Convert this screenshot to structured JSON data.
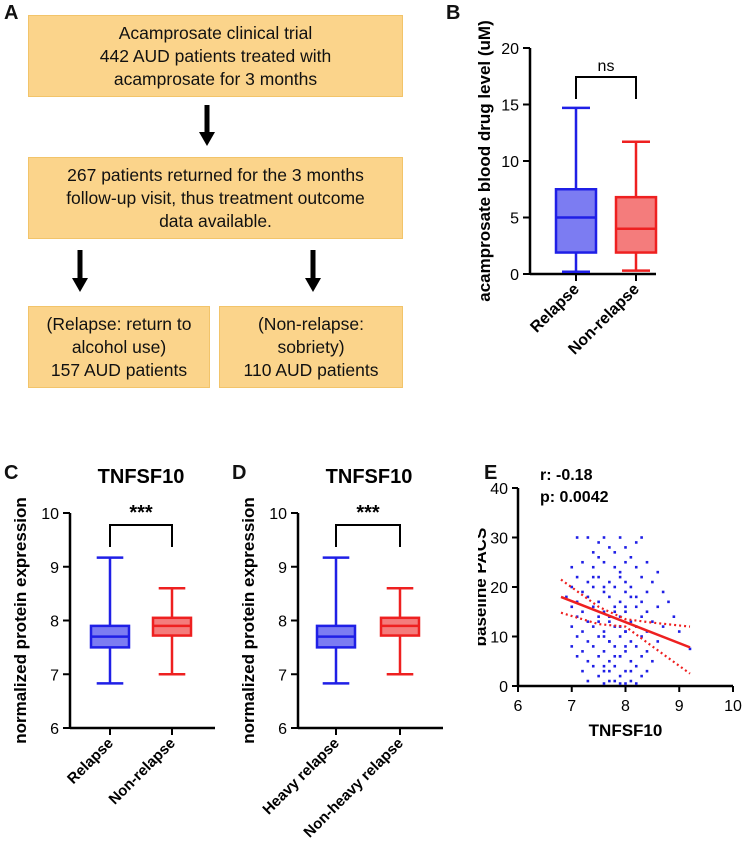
{
  "panels": {
    "A": "A",
    "B": "B",
    "C": "C",
    "D": "D",
    "E": "E"
  },
  "flowchart": {
    "box1": [
      "Acamprosate clinical trial",
      "442 AUD patients treated with",
      "acamprosate for 3 months"
    ],
    "box2": [
      "267 patients returned for the 3 months",
      "follow-up visit, thus treatment outcome",
      "data available."
    ],
    "box3": [
      "(Relapse: return to",
      "alcohol use)",
      "157 AUD patients"
    ],
    "box4": [
      "(Non-relapse:",
      "sobriety)",
      "110 AUD patients"
    ]
  },
  "colors": {
    "blue": "#1f1fe6",
    "blue_fill": "#7c7cf2",
    "red": "#ee2020",
    "red_fill": "#f47c7c",
    "box_fill": "#fbd48b"
  },
  "chart_data": [
    {
      "id": "B",
      "type": "boxplot",
      "title": "",
      "ylabel": "acamprosate blood drug level (uM)",
      "ylim": [
        0,
        20
      ],
      "yticks": [
        "0",
        "5",
        "10",
        "15",
        "20"
      ],
      "categories": [
        "Relapse",
        "Non-relapse"
      ],
      "boxes": [
        {
          "min": 0.2,
          "q1": 1.9,
          "median": 5.0,
          "q3": 7.5,
          "max": 14.7
        },
        {
          "min": 0.3,
          "q1": 1.9,
          "median": 4.0,
          "q3": 6.8,
          "max": 11.7
        }
      ],
      "annotation": "ns"
    },
    {
      "id": "C",
      "type": "boxplot",
      "title": "TNFSF10",
      "ylabel": "normalized protein expression",
      "ylim": [
        6,
        10
      ],
      "yticks": [
        "6",
        "7",
        "8",
        "9",
        "10"
      ],
      "categories": [
        "Relapse",
        "Non-relapse"
      ],
      "boxes": [
        {
          "min": 6.83,
          "q1": 7.5,
          "median": 7.7,
          "q3": 7.9,
          "max": 9.17
        },
        {
          "min": 7.0,
          "q1": 7.72,
          "median": 7.9,
          "q3": 8.05,
          "max": 8.6
        }
      ],
      "annotation": "***"
    },
    {
      "id": "D",
      "type": "boxplot",
      "title": "TNFSF10",
      "ylabel": "normalized protein expression",
      "ylim": [
        6,
        10
      ],
      "yticks": [
        "6",
        "7",
        "8",
        "9",
        "10"
      ],
      "categories": [
        "Heavy relapse",
        "Non-heavy relapse"
      ],
      "boxes": [
        {
          "min": 6.83,
          "q1": 7.5,
          "median": 7.7,
          "q3": 7.9,
          "max": 9.17
        },
        {
          "min": 7.0,
          "q1": 7.72,
          "median": 7.9,
          "q3": 8.05,
          "max": 8.6
        }
      ],
      "annotation": "***"
    },
    {
      "id": "E",
      "type": "scatter",
      "xlabel": "TNFSF10",
      "ylabel": "baseline PACS",
      "xlim": [
        6,
        10
      ],
      "ylim": [
        0,
        40
      ],
      "xticks": [
        "6",
        "7",
        "8",
        "9",
        "10"
      ],
      "yticks": [
        "0",
        "10",
        "20",
        "30",
        "40"
      ],
      "stats": [
        "r: -0.18",
        "p: 0.0042"
      ],
      "regression": {
        "x0": 6.8,
        "y0": 18.0,
        "x1": 9.2,
        "y1": 7.8
      },
      "ci_upper": [
        [
          6.8,
          21.5
        ],
        [
          7.5,
          16.0
        ],
        [
          8.0,
          13.5
        ],
        [
          8.5,
          12.8
        ],
        [
          9.2,
          12.0
        ]
      ],
      "ci_lower": [
        [
          6.8,
          14.8
        ],
        [
          7.5,
          12.5
        ],
        [
          8.0,
          12.0
        ],
        [
          8.5,
          8.0
        ],
        [
          9.2,
          2.5
        ]
      ],
      "points": [
        [
          7.1,
          30
        ],
        [
          7.3,
          30
        ],
        [
          7.6,
          30
        ],
        [
          7.9,
          30
        ],
        [
          8.3,
          30
        ],
        [
          7.5,
          29
        ],
        [
          7.7,
          28
        ],
        [
          8.0,
          28
        ],
        [
          8.2,
          29
        ],
        [
          7.4,
          27
        ],
        [
          7.8,
          27
        ],
        [
          8.1,
          26
        ],
        [
          7.2,
          25
        ],
        [
          7.6,
          25
        ],
        [
          8.0,
          25
        ],
        [
          8.4,
          25
        ],
        [
          7.0,
          24
        ],
        [
          7.4,
          24
        ],
        [
          7.8,
          24
        ],
        [
          8.2,
          24
        ],
        [
          8.6,
          23
        ],
        [
          7.1,
          22
        ],
        [
          7.5,
          22
        ],
        [
          7.9,
          22
        ],
        [
          8.3,
          22
        ],
        [
          7.3,
          21
        ],
        [
          7.7,
          21
        ],
        [
          8.0,
          21
        ],
        [
          8.5,
          21
        ],
        [
          7.0,
          20
        ],
        [
          7.4,
          20
        ],
        [
          7.8,
          20
        ],
        [
          8.1,
          20
        ],
        [
          8.7,
          19
        ],
        [
          7.2,
          19
        ],
        [
          7.6,
          19
        ],
        [
          8.0,
          19
        ],
        [
          8.4,
          19
        ],
        [
          6.9,
          18
        ],
        [
          7.3,
          18
        ],
        [
          7.7,
          18
        ],
        [
          8.2,
          18
        ],
        [
          8.8,
          17
        ],
        [
          7.1,
          17
        ],
        [
          7.5,
          17
        ],
        [
          7.9,
          17
        ],
        [
          8.3,
          17
        ],
        [
          7.0,
          16
        ],
        [
          7.4,
          16
        ],
        [
          7.8,
          16
        ],
        [
          8.2,
          16
        ],
        [
          8.6,
          16
        ],
        [
          7.2,
          15
        ],
        [
          7.6,
          15
        ],
        [
          8.0,
          15
        ],
        [
          8.4,
          15
        ],
        [
          7.1,
          14
        ],
        [
          7.5,
          14
        ],
        [
          7.9,
          14
        ],
        [
          8.3,
          14
        ],
        [
          8.9,
          14
        ],
        [
          7.3,
          13
        ],
        [
          7.7,
          13
        ],
        [
          8.1,
          13
        ],
        [
          8.5,
          13
        ],
        [
          7.0,
          12
        ],
        [
          7.4,
          12
        ],
        [
          7.8,
          12
        ],
        [
          8.2,
          12
        ],
        [
          8.7,
          12
        ],
        [
          7.2,
          11
        ],
        [
          7.6,
          11
        ],
        [
          8.0,
          11
        ],
        [
          8.4,
          11
        ],
        [
          9.0,
          11
        ],
        [
          7.1,
          10
        ],
        [
          7.5,
          10
        ],
        [
          7.9,
          10
        ],
        [
          8.3,
          10
        ],
        [
          7.3,
          9
        ],
        [
          7.7,
          9
        ],
        [
          8.1,
          9
        ],
        [
          8.6,
          9
        ],
        [
          7.0,
          8
        ],
        [
          7.4,
          8
        ],
        [
          7.8,
          8
        ],
        [
          8.2,
          8
        ],
        [
          9.2,
          7.5
        ],
        [
          7.2,
          7
        ],
        [
          7.6,
          7
        ],
        [
          8.0,
          7
        ],
        [
          8.4,
          7
        ],
        [
          7.1,
          6
        ],
        [
          7.5,
          6
        ],
        [
          7.9,
          6
        ],
        [
          8.3,
          6
        ],
        [
          7.3,
          5
        ],
        [
          7.7,
          5
        ],
        [
          8.1,
          5
        ],
        [
          8.5,
          5
        ],
        [
          7.4,
          4
        ],
        [
          7.8,
          4
        ],
        [
          8.2,
          4
        ],
        [
          7.2,
          3
        ],
        [
          7.6,
          3
        ],
        [
          8.0,
          3
        ],
        [
          8.4,
          3
        ],
        [
          7.5,
          2
        ],
        [
          7.9,
          2
        ],
        [
          8.3,
          2
        ],
        [
          7.3,
          1
        ],
        [
          7.7,
          1
        ],
        [
          8.1,
          1
        ],
        [
          7.6,
          0.5
        ],
        [
          8.0,
          0.5
        ],
        [
          8.2,
          0.5
        ],
        [
          7.5,
          26
        ],
        [
          7.9,
          23
        ],
        [
          7.6,
          20
        ],
        [
          8.1,
          18
        ],
        [
          7.8,
          15
        ],
        [
          7.5,
          13
        ],
        [
          8.0,
          11
        ],
        [
          7.7,
          9
        ],
        [
          7.9,
          6
        ],
        [
          7.6,
          4
        ],
        [
          8.1,
          3
        ],
        [
          7.8,
          1
        ],
        [
          7.4,
          22
        ],
        [
          8.0,
          16
        ],
        [
          7.7,
          14
        ],
        [
          7.9,
          12
        ],
        [
          7.6,
          10
        ],
        [
          8.0,
          8
        ],
        [
          7.8,
          6
        ],
        [
          7.7,
          3
        ],
        [
          7.9,
          0.5
        ]
      ]
    }
  ]
}
